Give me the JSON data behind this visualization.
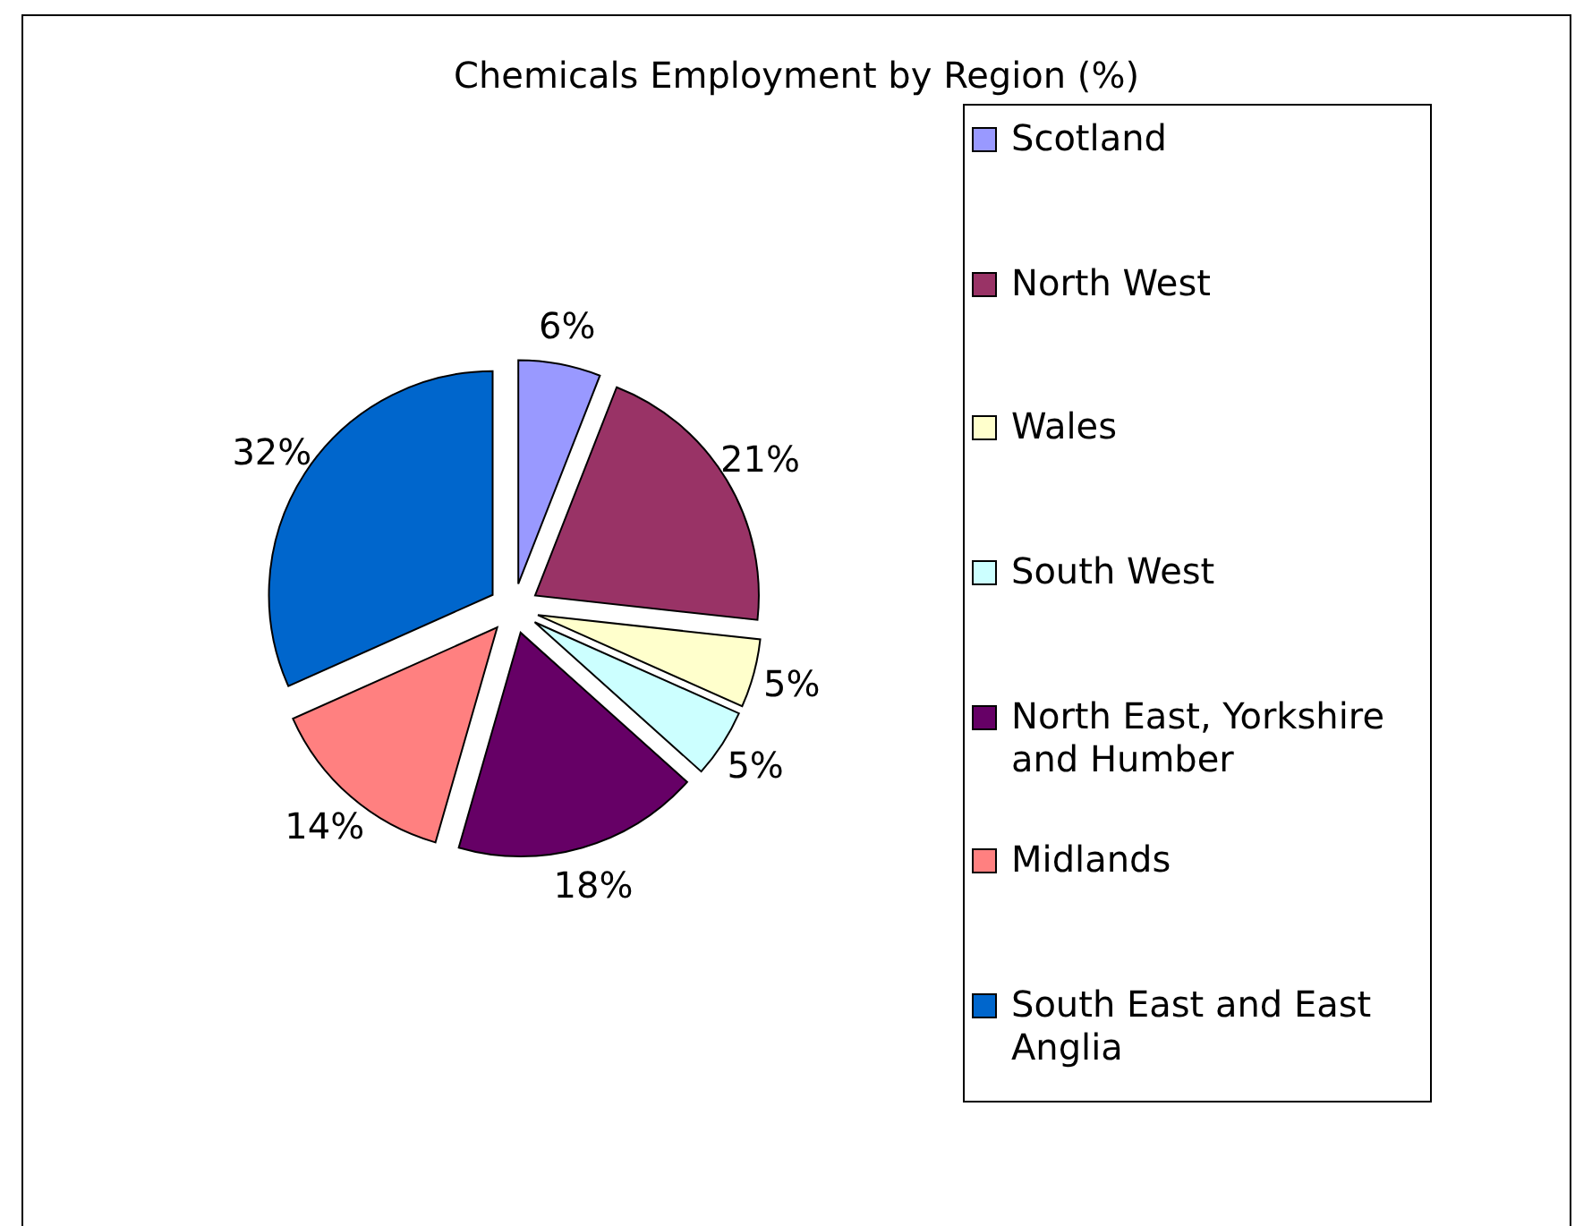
{
  "chart_data": {
    "type": "pie",
    "title": "Chemicals Employment by Region (%)",
    "categories": [
      "Scotland",
      "North West",
      "Wales",
      "South West",
      "North East, Yorkshire and Humber",
      "Midlands",
      "South East and East Anglia"
    ],
    "values": [
      6,
      21,
      5,
      5,
      18,
      14,
      32
    ],
    "value_labels": [
      "6%",
      "21%",
      "5%",
      "5%",
      "18%",
      "14%",
      "32%"
    ],
    "colors": [
      "#9999ff",
      "#993366",
      "#ffffcc",
      "#ccffff",
      "#660066",
      "#ff8080",
      "#0066cc"
    ],
    "legend": "right"
  }
}
